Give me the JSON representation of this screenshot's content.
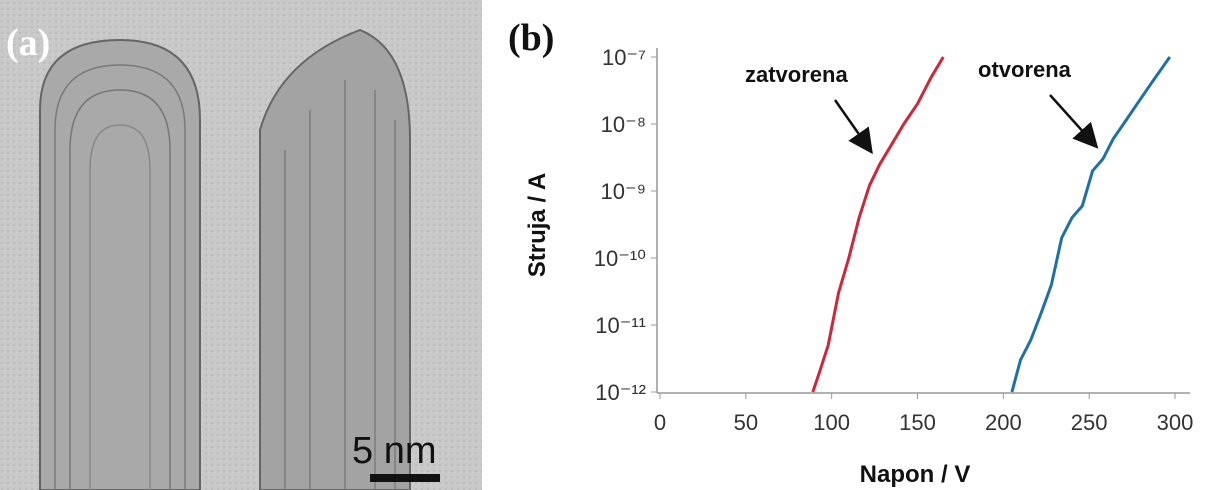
{
  "image_panel": {
    "label": "(a)",
    "scale_bar": "5 nm"
  },
  "chart_data": {
    "type": "line",
    "panel_label": "(b)",
    "xlabel": "Napon / V",
    "ylabel": "Struja / A",
    "xlim": [
      0,
      308
    ],
    "xticks": [
      0,
      50,
      100,
      150,
      200,
      250,
      300
    ],
    "ylim": [
      1e-12,
      1e-07
    ],
    "yscale": "log",
    "yticks": [
      {
        "value": 1e-12,
        "label": "10⁻¹²"
      },
      {
        "value": 1e-11,
        "label": "10⁻¹¹"
      },
      {
        "value": 1e-10,
        "label": "10⁻¹⁰"
      },
      {
        "value": 1e-09,
        "label": "10⁻⁹"
      },
      {
        "value": 1e-08,
        "label": "10⁻⁸"
      },
      {
        "value": 1e-07,
        "label": "10⁻⁷"
      }
    ],
    "series": [
      {
        "name": "zatvorena",
        "color": "#d0263a",
        "x": [
          89,
          93,
          98,
          104,
          110,
          116,
          122,
          128,
          135,
          142,
          150,
          158,
          165
        ],
        "values": [
          1e-12,
          2e-12,
          5e-12,
          3e-11,
          1e-10,
          4e-10,
          1.2e-09,
          2.5e-09,
          5e-09,
          1e-08,
          2e-08,
          5e-08,
          1e-07
        ]
      },
      {
        "name": "otvorena",
        "color": "#1f6fa8",
        "x": [
          205,
          210,
          216,
          222,
          228,
          234,
          240,
          246,
          252,
          258,
          264,
          270,
          278,
          286,
          297
        ],
        "values": [
          1e-12,
          3e-12,
          6e-12,
          1.5e-11,
          4e-11,
          2e-10,
          4e-10,
          6e-10,
          2e-09,
          3e-09,
          6e-09,
          1e-08,
          2e-08,
          4e-08,
          1e-07
        ]
      }
    ]
  }
}
